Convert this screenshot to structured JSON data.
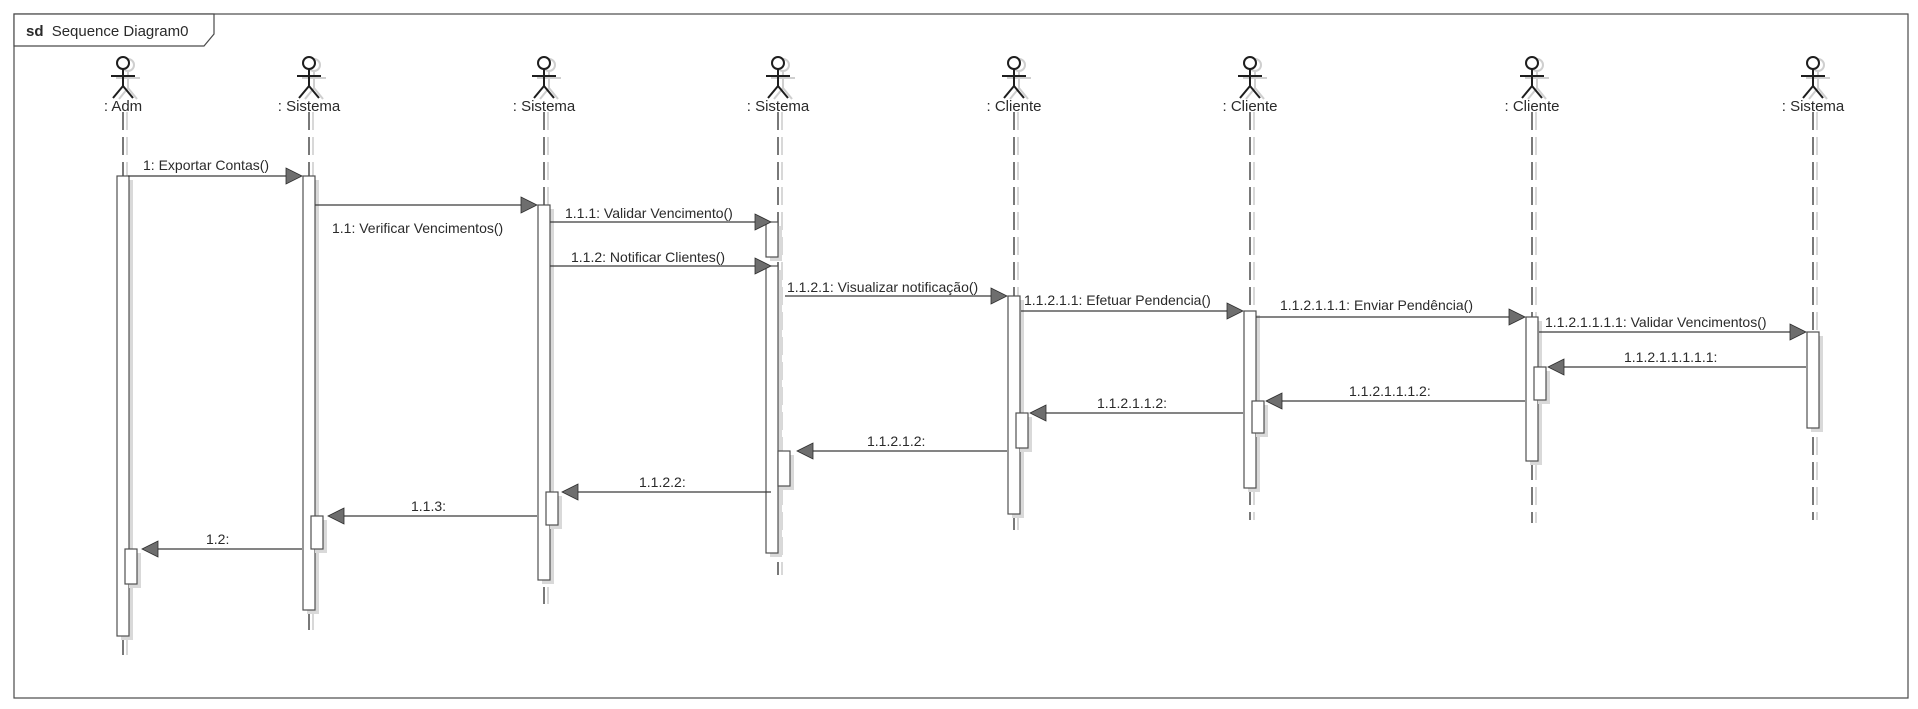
{
  "frame": {
    "keyword": "sd",
    "name": "Sequence Diagram0"
  },
  "lifelines": [
    {
      "id": "adm",
      "label": ": Adm"
    },
    {
      "id": "sistema1",
      "label": ": Sistema"
    },
    {
      "id": "sistema2",
      "label": ": Sistema"
    },
    {
      "id": "sistema3",
      "label": ": Sistema"
    },
    {
      "id": "cliente1",
      "label": ": Cliente"
    },
    {
      "id": "cliente2",
      "label": ": Cliente"
    },
    {
      "id": "cliente3",
      "label": ": Cliente"
    },
    {
      "id": "sistema4",
      "label": ": Sistema"
    }
  ],
  "messages": [
    {
      "id": "m1",
      "from": "adm",
      "to": "sistema1",
      "label": "1: Exportar Contas()",
      "kind": "call"
    },
    {
      "id": "m2",
      "from": "sistema1",
      "to": "sistema2",
      "label": "1.1: Verificar Vencimentos()",
      "kind": "call"
    },
    {
      "id": "m3",
      "from": "sistema2",
      "to": "sistema3",
      "label": "1.1.1: Validar Vencimento()",
      "kind": "call"
    },
    {
      "id": "m4",
      "from": "sistema2",
      "to": "sistema3",
      "label": "1.1.2: Notificar Clientes()",
      "kind": "call"
    },
    {
      "id": "m5",
      "from": "sistema3",
      "to": "cliente1",
      "label": "1.1.2.1: Visualizar notificação()",
      "kind": "call"
    },
    {
      "id": "m6",
      "from": "cliente1",
      "to": "cliente2",
      "label": "1.1.2.1.1: Efetuar Pendencia()",
      "kind": "call"
    },
    {
      "id": "m7",
      "from": "cliente2",
      "to": "cliente3",
      "label": "1.1.2.1.1.1: Enviar Pendência()",
      "kind": "call"
    },
    {
      "id": "m8",
      "from": "cliente3",
      "to": "sistema4",
      "label": "1.1.2.1.1.1.1: Validar Vencimentos()",
      "kind": "call"
    },
    {
      "id": "m9",
      "from": "sistema4",
      "to": "cliente3",
      "label": "1.1.2.1.1.1.1.1:",
      "kind": "return"
    },
    {
      "id": "m10",
      "from": "cliente3",
      "to": "cliente2",
      "label": "1.1.2.1.1.1.2:",
      "kind": "return"
    },
    {
      "id": "m11",
      "from": "cliente2",
      "to": "cliente1",
      "label": "1.1.2.1.1.2:",
      "kind": "return"
    },
    {
      "id": "m12",
      "from": "cliente1",
      "to": "sistema3",
      "label": "1.1.2.1.2:",
      "kind": "return"
    },
    {
      "id": "m13",
      "from": "sistema3",
      "to": "sistema2",
      "label": "1.1.2.2:",
      "kind": "return"
    },
    {
      "id": "m14",
      "from": "sistema2",
      "to": "sistema1",
      "label": "1.1.3:",
      "kind": "return"
    },
    {
      "id": "m15",
      "from": "sistema1",
      "to": "adm",
      "label": "1.2:",
      "kind": "return"
    }
  ]
}
